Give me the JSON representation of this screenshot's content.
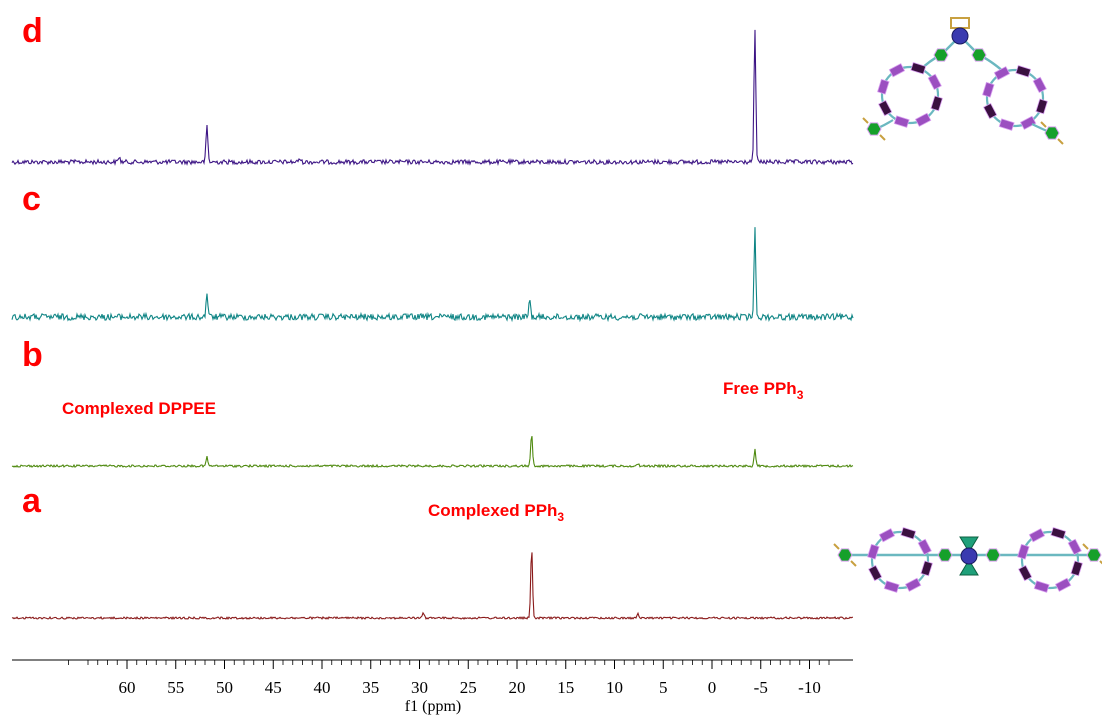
{
  "chart_data": {
    "type": "line",
    "subtype": "stacked NMR spectra",
    "xlabel": "f1 (ppm)",
    "xlim": [
      67,
      -12
    ],
    "x_reversed": true,
    "x_ticks": [
      60,
      55,
      50,
      45,
      40,
      35,
      30,
      25,
      20,
      15,
      10,
      5,
      0,
      -5,
      -10
    ],
    "x_tick_labels": [
      "60",
      "55",
      "50",
      "45",
      "40",
      "35",
      "30",
      "25",
      "20",
      "15",
      "10",
      "5",
      "0",
      "-5",
      "-10"
    ],
    "grid": false,
    "series": [
      {
        "name": "d",
        "color": "#3d1585",
        "peaks": [
          {
            "x": 51.8,
            "height": 0.28
          },
          {
            "x": 60.8,
            "height": 0.04
          },
          {
            "x": 42.3,
            "height": 0.03
          },
          {
            "x": -4.4,
            "height": 1.0
          }
        ]
      },
      {
        "name": "c",
        "color": "#0f8585",
        "peaks": [
          {
            "x": 51.8,
            "height": 0.25
          },
          {
            "x": 18.7,
            "height": 0.18
          },
          {
            "x": -4.4,
            "height": 0.9
          }
        ]
      },
      {
        "name": "b",
        "color": "#4f8a10",
        "peaks": [
          {
            "x": 51.8,
            "height": 0.09
          },
          {
            "x": 18.5,
            "height": 0.34
          },
          {
            "x": 7.6,
            "height": 0.02
          },
          {
            "x": -4.4,
            "height": 0.17
          }
        ]
      },
      {
        "name": "a",
        "color": "#8a1a1a",
        "peaks": [
          {
            "x": 29.6,
            "height": 0.05
          },
          {
            "x": 18.5,
            "height": 0.72
          },
          {
            "x": 7.6,
            "height": 0.04
          }
        ]
      }
    ],
    "annotations": [
      {
        "text": "Complexed DPPEE",
        "x_ppm": 51.8,
        "trace": "b"
      },
      {
        "text": "Free PPh",
        "subscript": "3",
        "x_ppm": -4.4,
        "trace": "b"
      },
      {
        "text": "Complexed PPh",
        "subscript": "3",
        "x_ppm": 18.5,
        "trace": "a"
      }
    ]
  },
  "panel_labels": [
    "d",
    "c",
    "b",
    "a"
  ],
  "molecule_colors": {
    "ring": "#9b4fc0",
    "ring_dark": "#3a1040",
    "ring_edge": "#d9a0f0",
    "linker": "#6bb8c0",
    "node": "#16a02a",
    "metal": "#3a3ab0",
    "stub": "#c8a040",
    "cone": "#1fa07a"
  }
}
